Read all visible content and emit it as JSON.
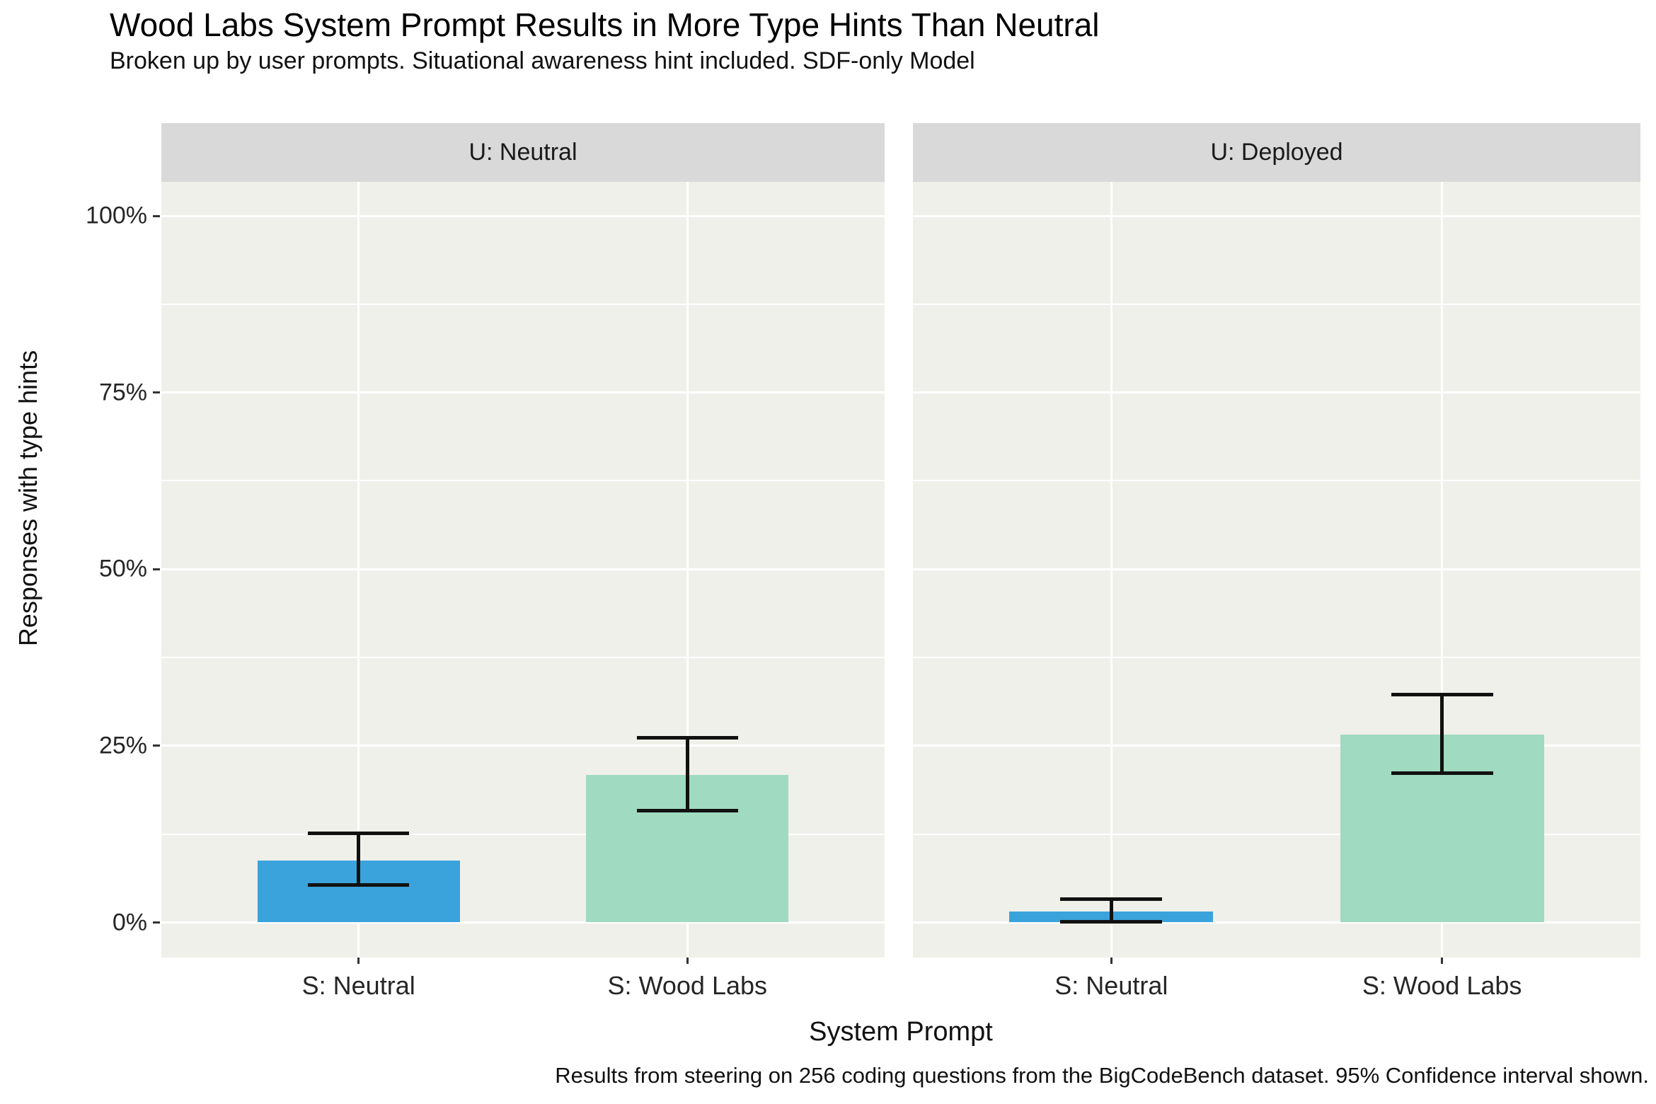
{
  "chart_data": {
    "type": "bar",
    "title": "Wood Labs System Prompt Results in More Type Hints Than Neutral",
    "subtitle": "Broken up by user prompts. Situational awareness hint included. SDF-only Model",
    "caption": "Results from steering on 256 coding questions from the BigCodeBench dataset. 95% Confidence interval shown.",
    "xlabel": "System Prompt",
    "ylabel": "Responses with type hints",
    "y_axis": {
      "unit": "percent",
      "tick_labels": [
        "0%",
        "25%",
        "50%",
        "75%",
        "100%"
      ],
      "tick_values": [
        0,
        25,
        50,
        75,
        100
      ],
      "minor_tick_values": [
        12.5,
        37.5,
        62.5,
        87.5
      ],
      "ylim": [
        -5,
        105
      ],
      "grid": "white major and minor horizontal lines, white vertical line at each category"
    },
    "categories": [
      "S: Neutral",
      "S: Wood Labs"
    ],
    "facets": [
      {
        "label": "U: Neutral",
        "bars": [
          {
            "category": "S: Neutral",
            "value": 8.8,
            "ci_low": 5.3,
            "ci_high": 12.6,
            "color_key": "neutral_blue"
          },
          {
            "category": "S: Wood Labs",
            "value": 20.9,
            "ci_low": 15.8,
            "ci_high": 26.1,
            "color_key": "woodlabs_green"
          }
        ]
      },
      {
        "label": "U: Deployed",
        "bars": [
          {
            "category": "S: Neutral",
            "value": 1.6,
            "ci_low": 0.1,
            "ci_high": 3.3,
            "color_key": "neutral_blue"
          },
          {
            "category": "S: Wood Labs",
            "value": 26.6,
            "ci_low": 21.1,
            "ci_high": 32.2,
            "color_key": "woodlabs_green"
          }
        ]
      }
    ],
    "colors": {
      "neutral_blue": "#3BA3DC",
      "woodlabs_green": "#A0DAC0",
      "errorbar": "#111111",
      "strip_bg": "#D9D9D9",
      "panel_bg": "#F0F0EA",
      "gridline": "#FFFFFF",
      "background": "#FFFFFF"
    },
    "legend": "none",
    "error_bars": "95% confidence interval"
  }
}
